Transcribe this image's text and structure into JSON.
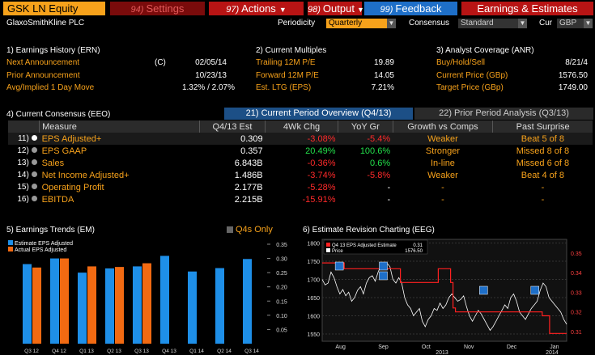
{
  "header": {
    "ticker": "GSK LN Equity",
    "buttons": [
      {
        "num": "94)",
        "label": "Settings"
      },
      {
        "num": "97)",
        "label": "Actions"
      },
      {
        "num": "98)",
        "label": "Output"
      },
      {
        "num": "99)",
        "label": "Feedback"
      },
      {
        "num": "",
        "label": "Earnings & Estimates"
      }
    ],
    "company": "GlaxoSmithKline PLC",
    "periodicity_label": "Periodicity",
    "periodicity_value": "Quarterly",
    "consensus_label": "Consensus",
    "consensus_value": "Standard",
    "cur_label": "Cur",
    "cur_value": "GBP"
  },
  "earnings_history": {
    "title": "1) Earnings History (ERN)",
    "rows": [
      {
        "label": "Next Announcement",
        "flag": "(C)",
        "value": "02/05/14"
      },
      {
        "label": "Prior Announcement",
        "flag": "",
        "value": "10/23/13"
      },
      {
        "label": "Avg/Implied 1 Day Move",
        "flag": "",
        "value": "1.32% / 2.07%"
      }
    ]
  },
  "current_multiples": {
    "title": "2) Current Multiples",
    "rows": [
      {
        "label": "Trailing 12M P/E",
        "value": "19.89"
      },
      {
        "label": "Forward 12M P/E",
        "value": "14.05"
      },
      {
        "label": "Est. LTG (EPS)",
        "value": "7.21%"
      }
    ]
  },
  "analyst_coverage": {
    "title": "3) Analyst Coverage (ANR)",
    "rows": [
      {
        "label": "Buy/Hold/Sell",
        "value": "8/21/4"
      },
      {
        "label": "Current Price (GBp)",
        "value": "1576.50"
      },
      {
        "label": "Target Price (GBp)",
        "value": "1749.00"
      }
    ]
  },
  "consensus": {
    "title": "4) Current Consensus (EEO)",
    "tab_current": "21) Current Period Overview (Q4/13)",
    "tab_prior": "22) Prior Period Analysis (Q3/13)",
    "columns": [
      "Measure",
      "Q4/13 Est",
      "4Wk Chg",
      "YoY Gr",
      "Growth vs Comps",
      "Past Surprise"
    ],
    "rows": [
      {
        "num": "11)",
        "measure": "EPS Adjusted+",
        "est": "0.309",
        "chg": "-3.08%",
        "chg_color": "red",
        "yoy": "-5.4%",
        "yoy_color": "red",
        "growth": "Weaker",
        "surprise": "Beat 5 of 8"
      },
      {
        "num": "12)",
        "measure": "EPS GAAP",
        "est": "0.357",
        "chg": "20.49%",
        "chg_color": "green",
        "yoy": "100.6%",
        "yoy_color": "green",
        "growth": "Stronger",
        "surprise": "Missed 8 of 8"
      },
      {
        "num": "13)",
        "measure": "Sales",
        "est": "6.843B",
        "chg": "-0.36%",
        "chg_color": "red",
        "yoy": "0.6%",
        "yoy_color": "green",
        "growth": "In-line",
        "surprise": "Missed 6 of 8"
      },
      {
        "num": "14)",
        "measure": "Net Income Adjusted+",
        "est": "1.486B",
        "chg": "-3.74%",
        "chg_color": "red",
        "yoy": "-5.8%",
        "yoy_color": "red",
        "growth": "Weaker",
        "surprise": "Beat 4 of 8"
      },
      {
        "num": "15)",
        "measure": "Operating Profit",
        "est": "2.177B",
        "chg": "-5.28%",
        "chg_color": "red",
        "yoy": "-",
        "yoy_color": "white",
        "growth": "-",
        "surprise": "-"
      },
      {
        "num": "16)",
        "measure": "EBITDA",
        "est": "2.215B",
        "chg": "-15.91%",
        "chg_color": "red",
        "yoy": "-",
        "yoy_color": "white",
        "growth": "-",
        "surprise": "-"
      }
    ]
  },
  "trends_title": "5) Earnings Trends (EM)",
  "q4s_only_label": "Q4s Only",
  "revision_title": "6) Estimate Revision Charting (EEG)",
  "colors": {
    "estimate": "#1e8fe8",
    "actual": "#f26a12",
    "price": "#ffffff",
    "revision": "#ff2020",
    "accent": "#f7a21b"
  },
  "chart_data": [
    {
      "type": "bar",
      "categories": [
        "Q3 12",
        "Q4 12",
        "Q1 13",
        "Q2 13",
        "Q3 13",
        "Q4 13",
        "Q1 14",
        "Q2 14",
        "Q3 14"
      ],
      "series": [
        {
          "name": "Estimate EPS Adjusted",
          "values": [
            0.28,
            0.3,
            0.25,
            0.265,
            0.272,
            0.309,
            0.254,
            0.266,
            0.298
          ]
        },
        {
          "name": "Actual EPS Adjusted",
          "values": [
            0.268,
            0.3,
            0.272,
            0.27,
            0.283,
            null,
            null,
            null,
            null
          ]
        }
      ],
      "ylim": [
        0,
        0.35
      ],
      "yticks": [
        "0.35",
        "0.30",
        "0.25",
        "0.20",
        "0.15",
        "0.10",
        "0.05"
      ],
      "legend": "top-left"
    },
    {
      "type": "line",
      "legend_items": [
        {
          "name": "Q4 13 EPS Adjusted Estimate",
          "value": "0.31"
        },
        {
          "name": "Price",
          "value": "1576.50"
        }
      ],
      "x_ticks": [
        "Aug",
        "Sep",
        "Oct",
        "Nov",
        "Dec",
        "Jan"
      ],
      "x_years": [
        "2013",
        "2014"
      ],
      "left_axis": {
        "ticks": [
          "1800",
          "1750",
          "1700",
          "1650",
          "1600",
          "1550"
        ],
        "range": [
          1530,
          1810
        ]
      },
      "right_axis": {
        "ticks": [
          "0.35",
          "0.34",
          "0.33",
          "0.32",
          "0.31"
        ],
        "range": [
          0.305,
          0.357
        ]
      },
      "price": [
        1700,
        1685,
        1690,
        1720,
        1705,
        1680,
        1660,
        1672,
        1655,
        1665,
        1640,
        1650,
        1670,
        1680,
        1660,
        1690,
        1705,
        1710,
        1695,
        1720,
        1740,
        1730,
        1745,
        1735,
        1700,
        1690,
        1705,
        1690,
        1650,
        1630,
        1620,
        1600,
        1610,
        1620,
        1585,
        1570,
        1590,
        1600,
        1620,
        1615,
        1635,
        1620,
        1630,
        1650,
        1660,
        1650,
        1640,
        1645,
        1655,
        1625,
        1600,
        1585,
        1600,
        1615,
        1605,
        1590,
        1575,
        1560,
        1570,
        1585,
        1600,
        1615,
        1630,
        1620,
        1650,
        1660,
        1640,
        1610,
        1600,
        1590,
        1605,
        1620,
        1630,
        1640,
        1670,
        1690,
        1680,
        1650,
        1640,
        1630,
        1620,
        1610,
        1590,
        1576.5
      ],
      "revision_steps": [
        {
          "from": 0.0,
          "to": 0.09,
          "value": 0.345
        },
        {
          "from": 0.09,
          "to": 0.32,
          "value": 0.342
        },
        {
          "from": 0.32,
          "to": 0.475,
          "value": 0.335
        },
        {
          "from": 0.475,
          "to": 0.525,
          "value": 0.342
        },
        {
          "from": 0.525,
          "to": 0.535,
          "value": 0.335
        },
        {
          "from": 0.535,
          "to": 0.545,
          "value": 0.322
        },
        {
          "from": 0.545,
          "to": 0.9,
          "value": 0.32
        },
        {
          "from": 0.9,
          "to": 0.93,
          "value": 0.318
        },
        {
          "from": 0.93,
          "to": 1.0,
          "value": 0.309
        }
      ],
      "markers": [
        {
          "pos": 0.07,
          "label": "E"
        },
        {
          "pos": 0.25,
          "label": "E"
        },
        {
          "pos": 0.25,
          "label": "E"
        },
        {
          "pos": 0.66,
          "label": "E"
        },
        {
          "pos": 0.87,
          "label": "E"
        }
      ]
    }
  ]
}
